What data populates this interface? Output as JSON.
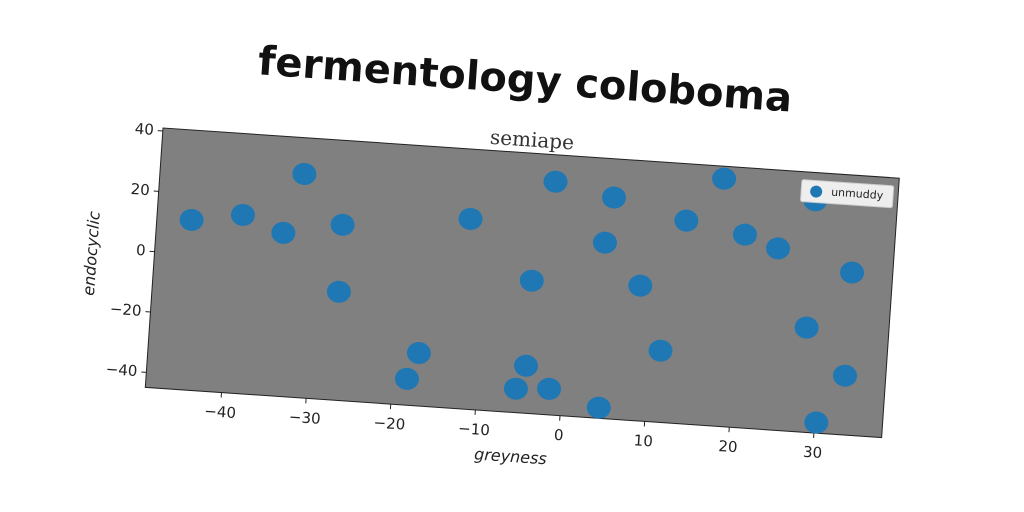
{
  "chart_data": {
    "type": "scatter",
    "title": "fermentology coloboma",
    "subtitle": "semiape",
    "x_label": "greyness",
    "y_label": "endocyclic",
    "legend_position": "upper right",
    "plot_background": "#808080",
    "xlim": [
      -49,
      38
    ],
    "ylim": [
      -45,
      41
    ],
    "xticks": [
      {
        "value": -40,
        "label": "−40"
      },
      {
        "value": -30,
        "label": "−30"
      },
      {
        "value": -20,
        "label": "−20"
      },
      {
        "value": -10,
        "label": "−10"
      },
      0,
      10,
      20,
      30
    ],
    "yticks": [
      {
        "value": -40,
        "label": "−40"
      },
      {
        "value": -20,
        "label": "−20"
      },
      0,
      20,
      40
    ],
    "series": [
      {
        "name": "unmuddy",
        "color": "#1f77b4",
        "x": [
          -44.9,
          -38.9,
          -32.0,
          -34.0,
          -27.1,
          -27.0,
          -17.1,
          -18.3,
          -12.1,
          -4.4,
          -5.4,
          -1.5,
          -4.4,
          -2.4,
          4.5,
          4.6,
          3.9,
          8.4,
          11.3,
          13.3,
          17.4,
          20.3,
          24.3,
          28.3,
          33.2,
          28.3,
          33.2,
          30.2
        ],
        "values": [
          11.3,
          14.1,
          29.0,
          9.1,
          13.1,
          -9.1,
          -27.5,
          -36.3,
          17.9,
          -29.3,
          -37.1,
          -36.4,
          -1.1,
          32.1,
          -41.5,
          28.2,
          13.1,
          -0.3,
          -21.3,
          22.2,
          36.9,
          18.9,
          15.1,
          31.8,
          8.8,
          -10.4,
          -25.4,
          -41.5
        ]
      }
    ]
  }
}
